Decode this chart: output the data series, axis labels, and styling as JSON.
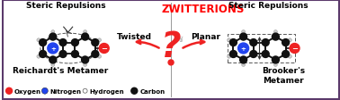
{
  "title": "ZWITTERIONS",
  "title_color": "#FF0000",
  "title_fontsize": 8.5,
  "bg_color": "#FFFFFF",
  "border_color": "#5B3A6B",
  "left_title": "Steric Repulsions",
  "right_title": "Steric Repulsions",
  "left_label": "Reichardt's Metamer",
  "right_label": "Brooker's\nMetamer",
  "twisted_label": "Twisted",
  "planar_label": "Planar",
  "legend_items": [
    {
      "label": "Oxygen",
      "color": "#EE2222"
    },
    {
      "label": "Nitrogen",
      "color": "#2244EE"
    },
    {
      "label": "Hydrogen",
      "color": "#CCCCCC"
    },
    {
      "label": "Carbon",
      "color": "#111111"
    }
  ],
  "carbon_color": "#111111",
  "nitrogen_color": "#2244EE",
  "oxygen_color": "#EE2222",
  "hydrogen_color": "#CCCCCC",
  "bond_color": "#111111"
}
